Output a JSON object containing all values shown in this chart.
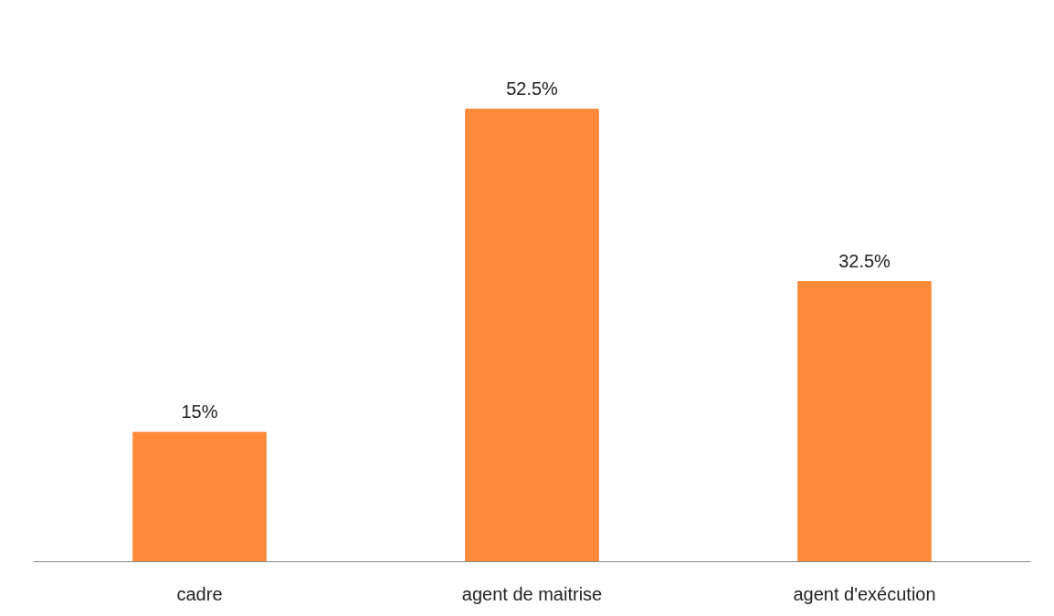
{
  "chart_data": {
    "type": "bar",
    "categories": [
      "cadre",
      "agent de maitrise",
      "agent d'exécution"
    ],
    "values": [
      15,
      52.5,
      32.5
    ],
    "color": "#ff8a3a",
    "value_labels": [
      "15%",
      "52.5%",
      "32.5%"
    ]
  }
}
